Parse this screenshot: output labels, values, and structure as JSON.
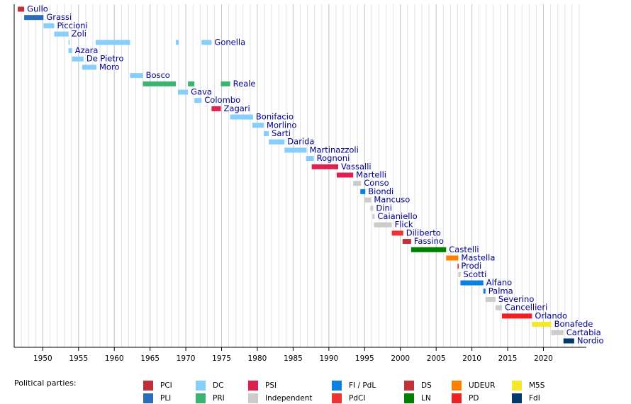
{
  "chart_data": {
    "type": "timeline",
    "xlim": [
      1946,
      2026
    ],
    "xticks": [
      1950,
      1955,
      1960,
      1965,
      1970,
      1975,
      1980,
      1985,
      1990,
      1995,
      2000,
      2005,
      2010,
      2015,
      2020
    ],
    "minor_grid_step": 1,
    "legend_title": "Political parties:",
    "series": [
      {
        "name": "PCI",
        "color": "#c0303c"
      },
      {
        "name": "PLI",
        "color": "#2a6ebb"
      },
      {
        "name": "DC",
        "color": "#87cefa"
      },
      {
        "name": "PRI",
        "color": "#3cb371"
      },
      {
        "name": "PSI",
        "color": "#dc2050"
      },
      {
        "name": "Independent",
        "color": "#cccccc"
      },
      {
        "name": "FI / PdL",
        "color": "#0a80e0"
      },
      {
        "name": "PdCI",
        "color": "#ee3333"
      },
      {
        "name": "DS",
        "color": "#c3303a"
      },
      {
        "name": "LN",
        "color": "#008000"
      },
      {
        "name": "UDEUR",
        "color": "#ff8000"
      },
      {
        "name": "PD",
        "color": "#ed2024"
      },
      {
        "name": "M5S",
        "color": "#f5e82a"
      },
      {
        "name": "FdI",
        "color": "#03386a"
      }
    ],
    "rows": [
      {
        "name": "Gullo",
        "party": "PCI",
        "segments": [
          [
            1946.5,
            1947.4
          ]
        ]
      },
      {
        "name": "Grassi",
        "party": "PLI",
        "segments": [
          [
            1947.4,
            1950.1
          ]
        ]
      },
      {
        "name": "Piccioni",
        "party": "DC",
        "segments": [
          [
            1950.1,
            1951.6
          ]
        ]
      },
      {
        "name": "Zoli",
        "party": "DC",
        "segments": [
          [
            1951.6,
            1953.6
          ]
        ]
      },
      {
        "name": "Gonella",
        "party": "DC",
        "segments": [
          [
            1953.6,
            1953.7
          ],
          [
            1957.4,
            1962.2
          ],
          [
            1968.6,
            1969.0
          ],
          [
            1972.2,
            1973.6
          ]
        ]
      },
      {
        "name": "Azara",
        "party": "DC",
        "segments": [
          [
            1953.6,
            1954.1
          ]
        ]
      },
      {
        "name": "De Pietro",
        "party": "DC",
        "segments": [
          [
            1954.1,
            1955.7
          ]
        ]
      },
      {
        "name": "Moro",
        "party": "DC",
        "segments": [
          [
            1955.5,
            1957.5
          ]
        ]
      },
      {
        "name": "Bosco",
        "party": "DC",
        "segments": [
          [
            1962.2,
            1964.0
          ]
        ]
      },
      {
        "name": "Reale",
        "party": "PRI",
        "segments": [
          [
            1964.0,
            1968.6
          ],
          [
            1970.3,
            1971.2
          ],
          [
            1974.9,
            1976.2
          ]
        ]
      },
      {
        "name": "Gava",
        "party": "DC",
        "segments": [
          [
            1968.9,
            1970.3
          ]
        ]
      },
      {
        "name": "Colombo",
        "party": "DC",
        "segments": [
          [
            1971.2,
            1972.2
          ]
        ]
      },
      {
        "name": "Zagari",
        "party": "PSI",
        "segments": [
          [
            1973.6,
            1974.9
          ]
        ]
      },
      {
        "name": "Bonifacio",
        "party": "DC",
        "segments": [
          [
            1976.2,
            1979.4
          ]
        ]
      },
      {
        "name": "Morlino",
        "party": "DC",
        "segments": [
          [
            1979.3,
            1980.9
          ]
        ]
      },
      {
        "name": "Sarti",
        "party": "DC",
        "segments": [
          [
            1980.9,
            1981.6
          ]
        ]
      },
      {
        "name": "Darida",
        "party": "DC",
        "segments": [
          [
            1981.6,
            1983.8
          ]
        ]
      },
      {
        "name": "Martinazzoli",
        "party": "DC",
        "segments": [
          [
            1983.8,
            1986.9
          ]
        ]
      },
      {
        "name": "Rognoni",
        "party": "DC",
        "segments": [
          [
            1986.8,
            1987.9
          ]
        ]
      },
      {
        "name": "Vassalli",
        "party": "PSI",
        "segments": [
          [
            1987.6,
            1991.3
          ]
        ]
      },
      {
        "name": "Martelli",
        "party": "PSI",
        "segments": [
          [
            1991.1,
            1993.4
          ]
        ]
      },
      {
        "name": "Conso",
        "party": "Independent",
        "segments": [
          [
            1993.4,
            1994.5
          ]
        ]
      },
      {
        "name": "Biondi",
        "party": "FI / PdL",
        "segments": [
          [
            1994.4,
            1995.1
          ]
        ]
      },
      {
        "name": "Mancuso",
        "party": "Independent",
        "segments": [
          [
            1995.0,
            1995.9
          ]
        ]
      },
      {
        "name": "Dini",
        "party": "Independent",
        "segments": [
          [
            1995.8,
            1996.2
          ]
        ]
      },
      {
        "name": "Caianiello",
        "party": "Independent",
        "segments": [
          [
            1996.1,
            1996.4
          ]
        ]
      },
      {
        "name": "Flick",
        "party": "Independent",
        "segments": [
          [
            1996.3,
            1998.8
          ]
        ]
      },
      {
        "name": "Diliberto",
        "party": "PdCI",
        "segments": [
          [
            1998.8,
            2000.4
          ]
        ]
      },
      {
        "name": "Fassino",
        "party": "DS",
        "segments": [
          [
            2000.3,
            2001.5
          ]
        ]
      },
      {
        "name": "Castelli",
        "party": "LN",
        "segments": [
          [
            2001.5,
            2006.4
          ]
        ]
      },
      {
        "name": "Mastella",
        "party": "UDEUR",
        "segments": [
          [
            2006.4,
            2008.1
          ]
        ]
      },
      {
        "name": "Prodi",
        "party": "PD",
        "segments": [
          [
            2008.0,
            2008.1
          ]
        ]
      },
      {
        "name": "Scotti",
        "party": "Independent",
        "segments": [
          [
            2008.1,
            2008.4
          ]
        ]
      },
      {
        "name": "Alfano",
        "party": "FI / PdL",
        "segments": [
          [
            2008.4,
            2011.6
          ]
        ]
      },
      {
        "name": "Palma",
        "party": "FI / PdL",
        "segments": [
          [
            2011.6,
            2011.9
          ]
        ]
      },
      {
        "name": "Severino",
        "party": "Independent",
        "segments": [
          [
            2011.9,
            2013.3
          ]
        ]
      },
      {
        "name": "Cancellieri",
        "party": "Independent",
        "segments": [
          [
            2013.3,
            2014.2
          ]
        ]
      },
      {
        "name": "Orlando",
        "party": "PD",
        "segments": [
          [
            2014.2,
            2018.4
          ]
        ]
      },
      {
        "name": "Bonafede",
        "party": "M5S",
        "segments": [
          [
            2018.4,
            2021.1
          ]
        ]
      },
      {
        "name": "Cartabia",
        "party": "Independent",
        "segments": [
          [
            2021.1,
            2022.8
          ]
        ]
      },
      {
        "name": "Nordio",
        "party": "FdI",
        "segments": [
          [
            2022.8,
            2024.3
          ]
        ]
      }
    ]
  }
}
